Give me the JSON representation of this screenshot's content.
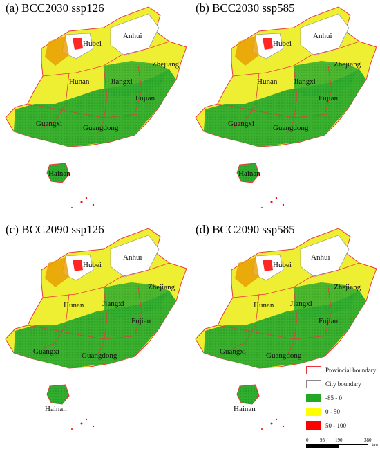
{
  "panels": [
    {
      "title": "(a) BCC2030 ssp126"
    },
    {
      "title": "(b) BCC2030 ssp585"
    },
    {
      "title": "(c) BCC2090 ssp126"
    },
    {
      "title": "(d) BCC2090 ssp585"
    }
  ],
  "provinces": {
    "anhui": "Anhui",
    "hubei": "Hubei",
    "zhejiang": "Zhejiang",
    "hunan": "Hunan",
    "jiangxi": "Jiangxi",
    "fujian": "Fujian",
    "guangxi": "Guangxi",
    "guangdong": "Guangdong",
    "hainan": "Hainan"
  },
  "legend": {
    "provincial": "Provincial boundary",
    "city": "City boundary",
    "class1": "-85 - 0",
    "class2": "0 - 50",
    "class3": "50 - 100",
    "colors": {
      "provincial": "#e8383d",
      "city": "#888888",
      "class1": "#22a822",
      "class2": "#ffff00",
      "class3": "#ff0000"
    }
  },
  "scale": {
    "t0": "0",
    "t1": "95",
    "t2": "190",
    "t3": "380",
    "unit": "km"
  }
}
